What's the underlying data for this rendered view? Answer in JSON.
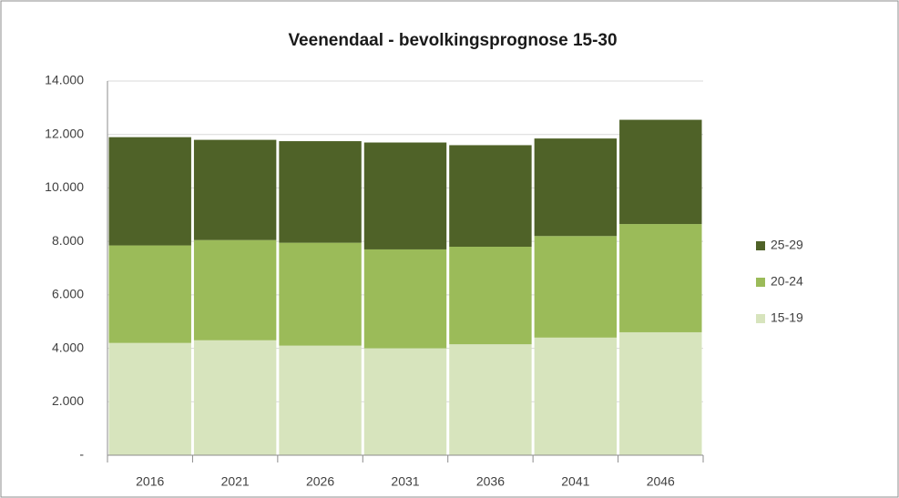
{
  "chart_data": {
    "type": "stacked_bar",
    "title": "Veenendaal - bevolkingsprognose 15-30",
    "categories": [
      "2016",
      "2021",
      "2026",
      "2031",
      "2036",
      "2041",
      "2046"
    ],
    "series": [
      {
        "name": "15-19",
        "color": "#d7e4bd",
        "values": [
          4200,
          4300,
          4100,
          4000,
          4150,
          4400,
          4600
        ]
      },
      {
        "name": "20-24",
        "color": "#9bbb59",
        "values": [
          3650,
          3750,
          3850,
          3700,
          3650,
          3800,
          4050
        ]
      },
      {
        "name": "25-29",
        "color": "#4f6228",
        "values": [
          4050,
          3750,
          3800,
          4000,
          3800,
          3650,
          3900
        ]
      }
    ],
    "ylim": [
      0,
      14000
    ],
    "yticks": [
      {
        "value": 0,
        "label": "-"
      },
      {
        "value": 2000,
        "label": "2.000"
      },
      {
        "value": 4000,
        "label": "4.000"
      },
      {
        "value": 6000,
        "label": "6.000"
      },
      {
        "value": 8000,
        "label": "8.000"
      },
      {
        "value": 10000,
        "label": "10.000"
      },
      {
        "value": 12000,
        "label": "12.000"
      },
      {
        "value": 14000,
        "label": "14.000"
      }
    ],
    "grid": true,
    "legend": "right"
  }
}
